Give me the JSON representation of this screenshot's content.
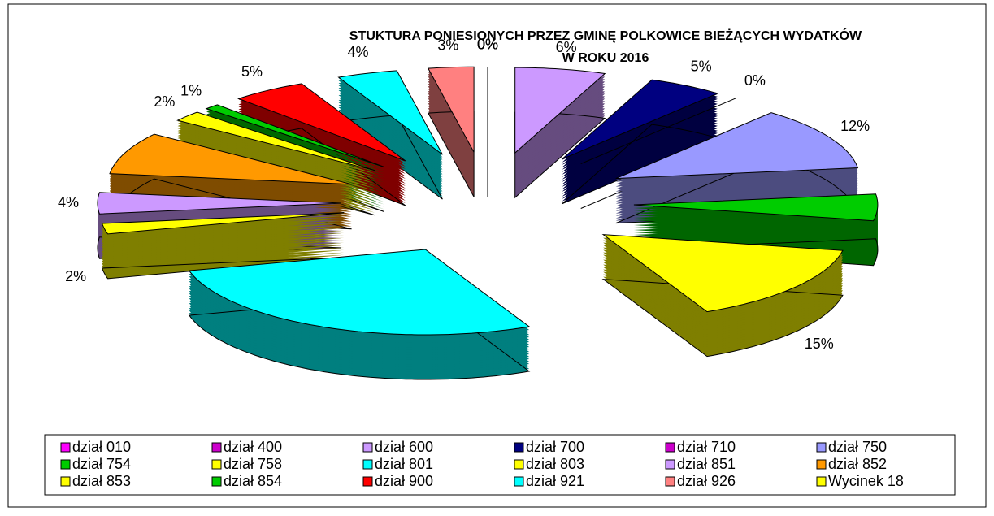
{
  "chart_data": {
    "type": "pie",
    "title": [
      "STUKTURA  PONIESIONYCH  PRZEZ  GMINĘ  POLKOWICE  BIEŻĄCYCH  WYDATKÓW",
      "W    ROKU  2016"
    ],
    "categories": [
      "dział 010",
      "dział 400",
      "dział 600",
      "dział 700",
      "dział 710",
      "dział 750",
      "dział 754",
      "dział 758",
      "dział 801",
      "dział 803",
      "dział 851",
      "dział 852",
      "dział 853",
      "dział 854",
      "dział 900",
      "dział 921",
      "dział 926",
      "Wycinek 18"
    ],
    "values": [
      0,
      0,
      6,
      5,
      0,
      12,
      5,
      15,
      28,
      2,
      4,
      8,
      2,
      1,
      5,
      4,
      3,
      0
    ],
    "value_labels": [
      "0%",
      "0%",
      "6%",
      "5%",
      "0%",
      "12%",
      null,
      "15%",
      null,
      "2%",
      "4%",
      null,
      "2%",
      "1%",
      "5%",
      "4%",
      "3%",
      "0%"
    ],
    "colors": [
      "#ff00ff",
      "#cc00cc",
      "#cc99ff",
      "#000080",
      "#cc00cc",
      "#9999ff",
      "#00cc00",
      "#ffff00",
      "#00ffff",
      "#ffff00",
      "#cc99ff",
      "#ff9900",
      "#ffff00",
      "#00cc00",
      "#ff0000",
      "#00ffff",
      "#ff8080",
      "#ffff00"
    ]
  }
}
